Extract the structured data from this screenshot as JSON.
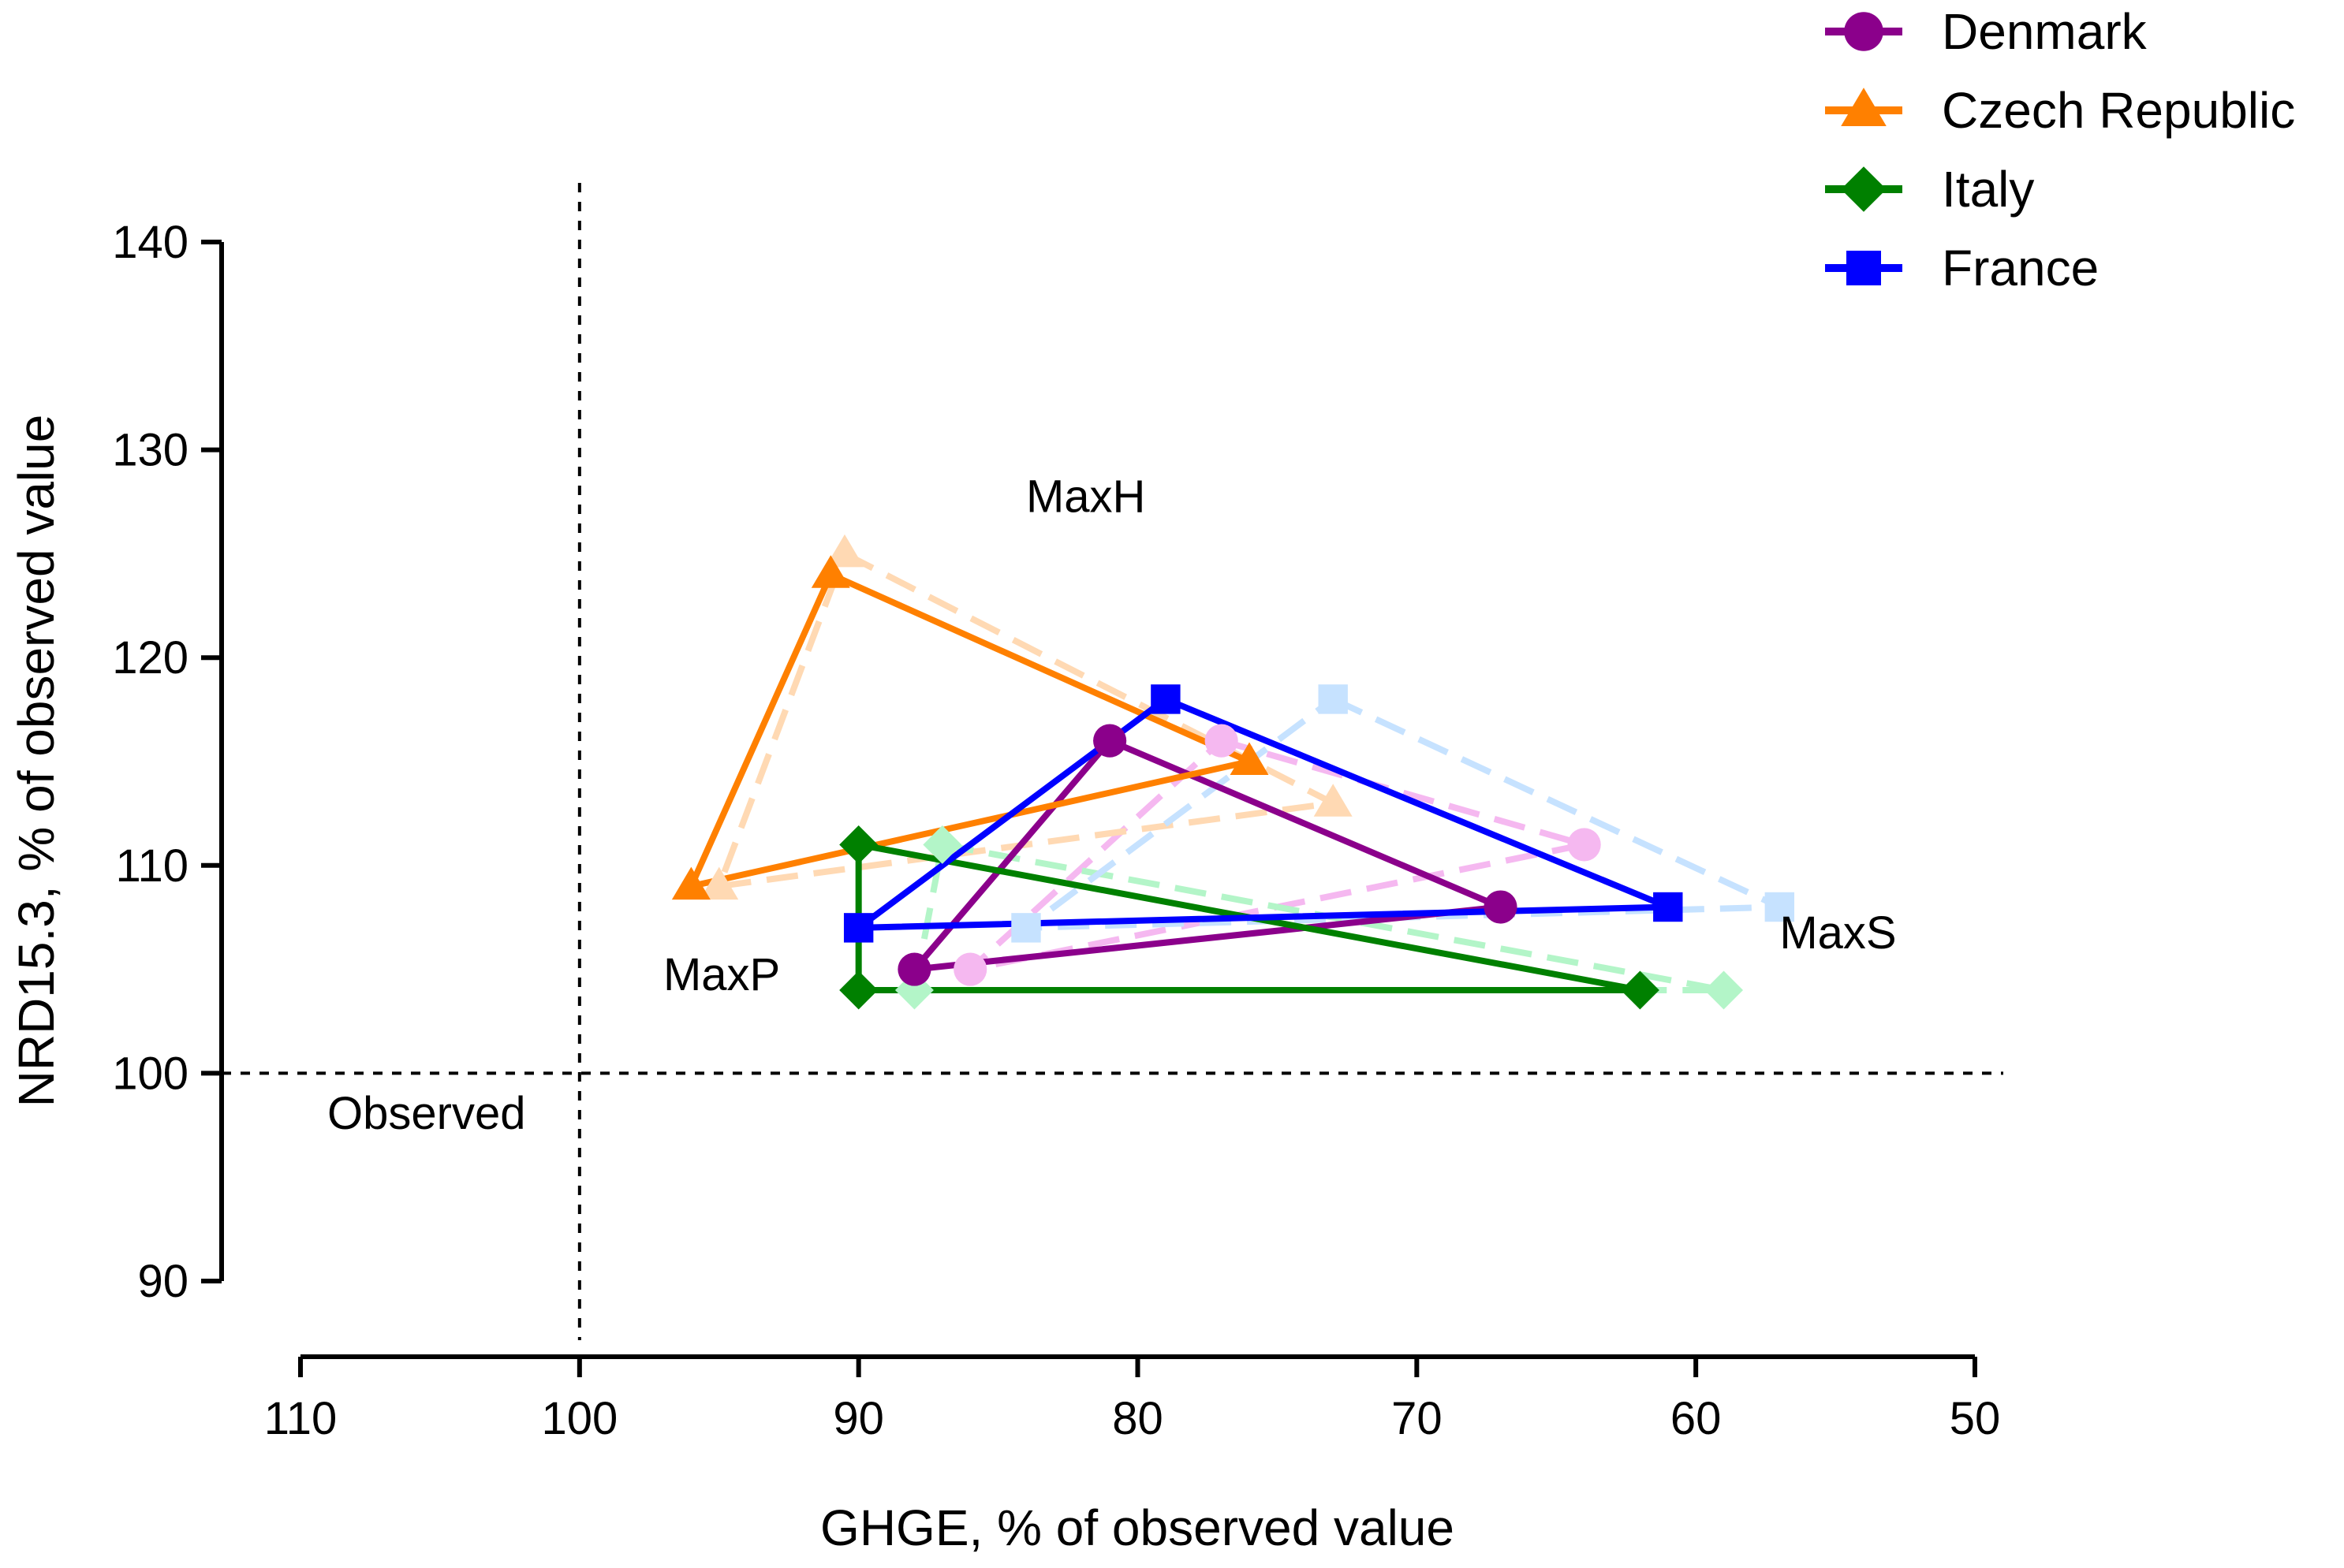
{
  "chart_data": {
    "type": "line",
    "title": "",
    "xlabel": "GHGE, % of observed value",
    "ylabel": "NRD15.3, % of observed value",
    "x_reversed": true,
    "xlim": [
      110,
      50
    ],
    "ylim": [
      90,
      140
    ],
    "xticks": [
      110,
      100,
      90,
      80,
      70,
      60,
      50
    ],
    "yticks": [
      90,
      100,
      110,
      120,
      130,
      140
    ],
    "legend_position": "top-right",
    "reference_lines": {
      "x": 100,
      "y": 100,
      "label": "Observed"
    },
    "annotations": [
      {
        "text": "MaxH",
        "x": 84,
        "y": 127
      },
      {
        "text": "MaxP",
        "x": 97,
        "y": 104
      },
      {
        "text": "MaxS",
        "x": 57,
        "y": 106
      }
    ],
    "series": [
      {
        "name": "Denmark",
        "color": "#8B008B",
        "marker": "circle",
        "solid_triangle": [
          [
            81,
            116
          ],
          [
            67,
            108
          ],
          [
            88,
            105
          ],
          [
            81,
            116
          ]
        ],
        "dashed_color": "#F5B8F0",
        "dashed_triangle": [
          [
            77,
            116
          ],
          [
            64,
            111
          ],
          [
            86,
            105
          ],
          [
            77,
            116
          ]
        ]
      },
      {
        "name": "Czech Republic",
        "color": "#FF8000",
        "marker": "triangle",
        "solid_triangle": [
          [
            91,
            124
          ],
          [
            76,
            115
          ],
          [
            96,
            109
          ],
          [
            91,
            124
          ]
        ],
        "dashed_color": "#FFD9B3",
        "dashed_triangle": [
          [
            90.5,
            125
          ],
          [
            73,
            113
          ],
          [
            95,
            109
          ],
          [
            90.5,
            125
          ]
        ]
      },
      {
        "name": "Italy",
        "color": "#008000",
        "marker": "diamond",
        "solid_triangle": [
          [
            90,
            111
          ],
          [
            62,
            104
          ],
          [
            90,
            104
          ],
          [
            90,
            111
          ]
        ],
        "dashed_color": "#B3F5C8",
        "dashed_triangle": [
          [
            87,
            111
          ],
          [
            59,
            104
          ],
          [
            88,
            104
          ],
          [
            87,
            111
          ]
        ]
      },
      {
        "name": "France",
        "color": "#0000FF",
        "marker": "square",
        "solid_triangle": [
          [
            79,
            118
          ],
          [
            61,
            108
          ],
          [
            90,
            107
          ],
          [
            79,
            118
          ]
        ],
        "dashed_color": "#C6E2FF",
        "dashed_triangle": [
          [
            73,
            118
          ],
          [
            57,
            108
          ],
          [
            84,
            107
          ],
          [
            73,
            118
          ]
        ]
      }
    ]
  }
}
